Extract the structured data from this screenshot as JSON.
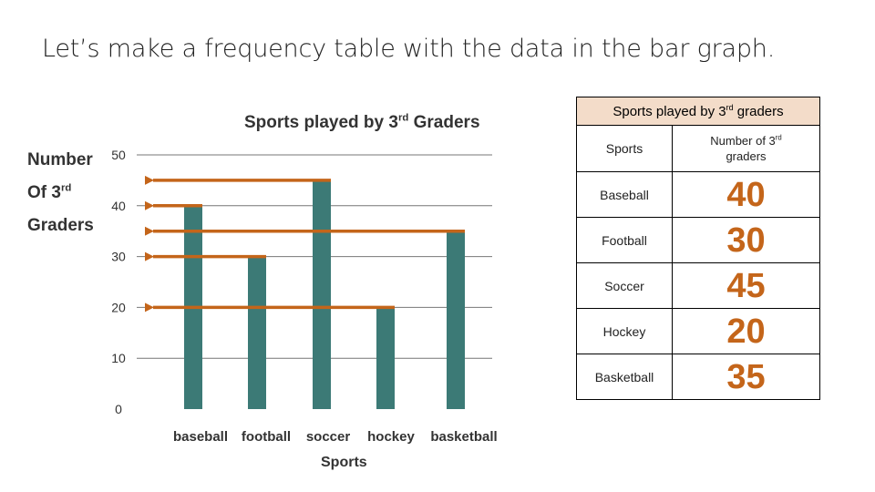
{
  "slide": {
    "title": "Let’s make a frequency table with the data in the bar graph."
  },
  "chart_data": {
    "type": "bar",
    "title_main": "Sports played by 3",
    "title_sup": "rd",
    "title_end": " Graders",
    "ylabel_line1": "Number",
    "ylabel_line2": "Of 3",
    "ylabel_line2_sup": "rd",
    "ylabel_line3": "Graders",
    "xlabel": "Sports",
    "categories": [
      "baseball",
      "football",
      "soccer",
      "hockey",
      "basketball"
    ],
    "values": [
      40,
      30,
      45,
      20,
      35
    ],
    "yticks": [
      0,
      10,
      20,
      30,
      40,
      50
    ],
    "ylim": [
      0,
      50
    ],
    "grid": true,
    "arrows_to_axis_for": [
      "baseball",
      "football",
      "soccer",
      "hockey",
      "basketball"
    ],
    "colors": {
      "bar": "#3c7a76",
      "arrow": "#c4651a",
      "grid": "#777777"
    }
  },
  "table": {
    "caption_main": "Sports played by 3",
    "caption_sup": "rd",
    "caption_end": " graders",
    "col1_header": "Sports",
    "col2_header_main": "Number of 3",
    "col2_header_sup": "rd",
    "col2_header_end": "graders",
    "rows": [
      {
        "sport": "Baseball",
        "count": "40"
      },
      {
        "sport": "Football",
        "count": "30"
      },
      {
        "sport": "Soccer",
        "count": "45"
      },
      {
        "sport": "Hockey",
        "count": "20"
      },
      {
        "sport": "Basketball",
        "count": "35"
      }
    ]
  }
}
